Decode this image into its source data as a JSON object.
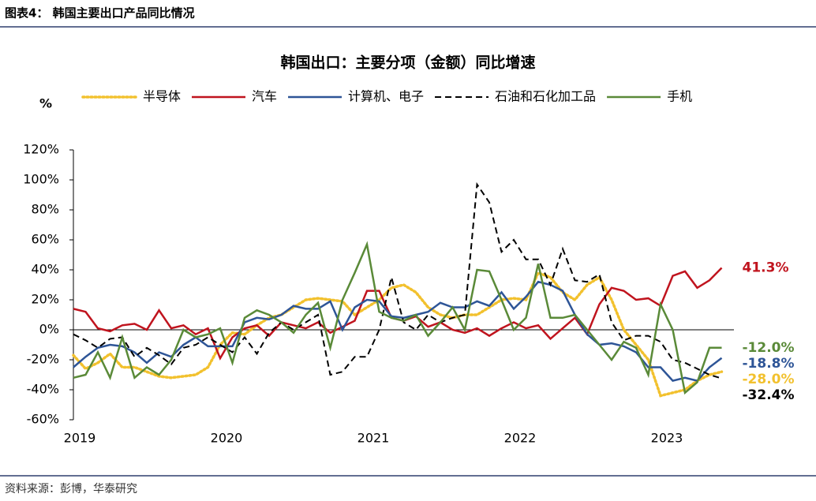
{
  "header": "图表4：  韩国主要出口产品同比情况",
  "source": "资料来源：彭博，华泰研究",
  "chart_data": {
    "type": "line",
    "title": "韩国出口：主要分项（金额）同比增速",
    "y_label": "%",
    "categories": [
      "2019",
      null,
      null,
      null,
      null,
      null,
      null,
      null,
      null,
      null,
      null,
      null,
      "2020",
      null,
      null,
      null,
      null,
      null,
      null,
      null,
      null,
      null,
      null,
      null,
      "2021",
      null,
      null,
      null,
      null,
      null,
      null,
      null,
      null,
      null,
      null,
      null,
      "2022",
      null,
      null,
      null,
      null,
      null,
      null,
      null,
      null,
      null,
      null,
      null,
      "2023",
      null,
      null,
      null,
      null,
      null
    ],
    "ylim": [
      -60,
      120
    ],
    "yticks": [
      {
        "value": -60,
        "label": "-60%"
      },
      {
        "value": -40,
        "label": "-40%"
      },
      {
        "value": -20,
        "label": "-20%"
      },
      {
        "value": 0,
        "label": "0%"
      },
      {
        "value": 20,
        "label": "20%"
      },
      {
        "value": 40,
        "label": "40%"
      },
      {
        "value": 60,
        "label": "60%"
      },
      {
        "value": 80,
        "label": "80%"
      },
      {
        "value": 100,
        "label": "100%"
      },
      {
        "value": 120,
        "label": "120%"
      }
    ],
    "series": [
      {
        "name": "半导体",
        "color": "#f2c12e",
        "dash": "dotted",
        "values": [
          -17,
          -26,
          -22,
          -16,
          -25,
          -25,
          -28,
          -31,
          -32,
          -31,
          -30,
          -25,
          -10,
          -2,
          -3,
          3,
          8,
          10,
          15,
          20,
          21,
          20,
          19,
          10,
          15,
          20,
          28,
          30,
          25,
          15,
          10,
          8,
          10,
          10,
          15,
          20,
          21,
          20,
          38,
          35,
          25,
          20,
          30,
          35,
          20,
          0,
          -10,
          -20,
          -44,
          -42,
          -40,
          -34,
          -30,
          -28.0
        ],
        "end_label": "-28.0%"
      },
      {
        "name": "汽车",
        "color": "#c0141e",
        "dash": "solid",
        "values": [
          14,
          12,
          1,
          -1,
          3,
          4,
          0,
          13,
          1,
          3,
          -3,
          1,
          -19,
          -5,
          1,
          3,
          -4,
          5,
          3,
          1,
          5,
          -2,
          2,
          6,
          26,
          26,
          8,
          6,
          9,
          2,
          5,
          0,
          -2,
          1,
          -4,
          1,
          5,
          1,
          3,
          -6,
          1,
          8,
          -3,
          17,
          28,
          26,
          20,
          21,
          16,
          36,
          39,
          28,
          33,
          41.3
        ],
        "end_label": "41.3%"
      },
      {
        "name": "计算机、电子",
        "color": "#2e5597",
        "dash": "solid",
        "values": [
          -25,
          -18,
          -12,
          -10,
          -11,
          -15,
          -22,
          -15,
          -18,
          -10,
          -5,
          -11,
          -11,
          -11,
          5,
          8,
          7,
          10,
          16,
          14,
          14,
          19,
          0,
          15,
          20,
          19,
          9,
          8,
          10,
          12,
          18,
          15,
          15,
          19,
          16,
          25,
          14,
          22,
          32,
          30,
          26,
          10,
          -3,
          -10,
          -9,
          -11,
          -15,
          -25,
          -25,
          -34,
          -32,
          -34,
          -25,
          -18.8
        ],
        "end_label": "-18.8%"
      },
      {
        "name": "石油和石化加工品",
        "color": "#000000",
        "dash": "dashed",
        "values": [
          -3,
          -7,
          -12,
          -6,
          -5,
          -18,
          -12,
          -17,
          -23,
          -12,
          -10,
          -5,
          -10,
          -15,
          -5,
          -16,
          -2,
          5,
          0,
          5,
          10,
          -30,
          -28,
          -18,
          -18,
          0,
          35,
          5,
          0,
          10,
          5,
          8,
          10,
          97,
          85,
          52,
          60,
          47,
          47,
          30,
          54,
          33,
          32,
          37,
          5,
          -7,
          -4,
          -4,
          -8,
          -20,
          -22,
          -26,
          -30,
          -32.4
        ],
        "end_label": "-32.4%"
      },
      {
        "name": "手机",
        "color": "#5a8a38",
        "dash": "solid",
        "values": [
          -32,
          -30,
          -15,
          -32,
          -5,
          -32,
          -25,
          -30,
          -20,
          0,
          -5,
          -3,
          1,
          -22,
          8,
          13,
          10,
          5,
          -2,
          10,
          18,
          -12,
          20,
          38,
          57,
          12,
          8,
          6,
          10,
          -4,
          5,
          15,
          0,
          40,
          39,
          20,
          0,
          8,
          44,
          8,
          8,
          10,
          0,
          -10,
          -20,
          -8,
          -12,
          -30,
          17,
          0,
          -42,
          -35,
          -12,
          -12.0
        ],
        "end_label": "-12.0%"
      }
    ]
  }
}
